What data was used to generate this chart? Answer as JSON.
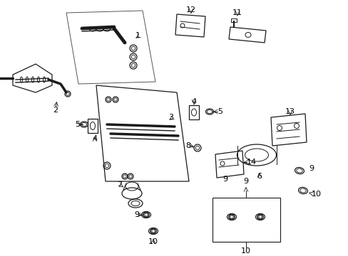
{
  "bg_color": "#ffffff",
  "lc": "#1a1a1a",
  "lw": 0.9,
  "figsize": [
    4.89,
    3.6
  ],
  "dpi": 100
}
